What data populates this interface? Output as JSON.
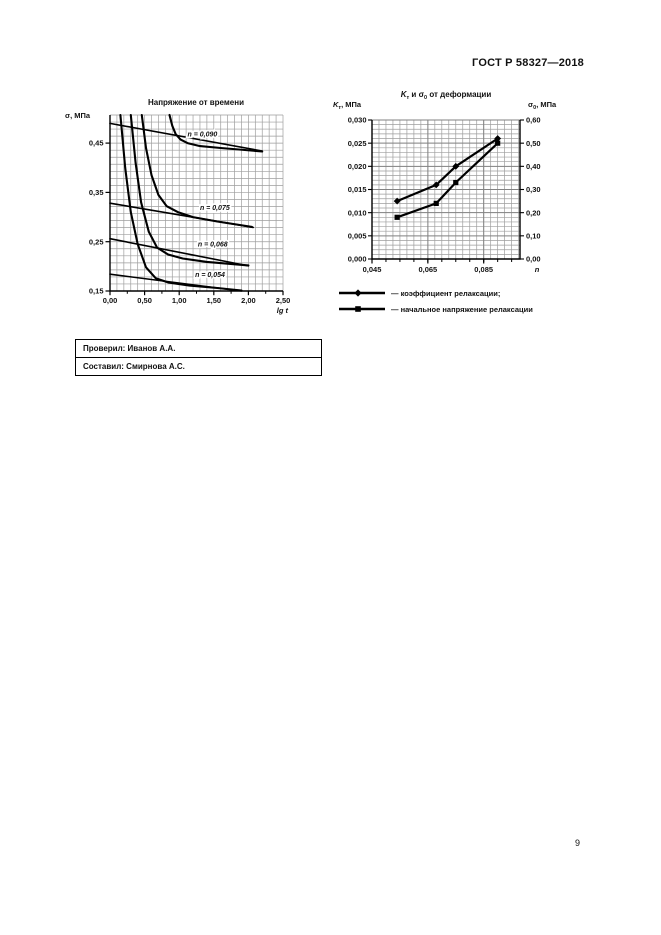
{
  "page": {
    "header_code": "ГОСТ Р 58327—2018",
    "page_number": "9"
  },
  "signature_box": {
    "row1": "Проверил: Иванов А.А.",
    "row2": "Составил: Смирнова А.С."
  },
  "colors": {
    "grid": "#9e9e9e",
    "grid_major": "#828282",
    "axis": "#000000",
    "series": "#000000",
    "text": "#111111"
  },
  "chart_data": [
    {
      "type": "line",
      "title": "Напряжение от времени",
      "ylabel": "σ, МПа",
      "xlabel": "lg t",
      "xlim": [
        0,
        2.5
      ],
      "ylim": [
        0.15,
        0.507
      ],
      "grid": true,
      "x_tick_values": [
        0,
        0.5,
        1.0,
        1.5,
        2.0,
        2.5
      ],
      "x_tick_labels": [
        "0,00",
        "0,50",
        "1,00",
        "1,50",
        "2,00",
        "2,50"
      ],
      "y_tick_values": [
        0.15,
        0.25,
        0.35,
        0.45
      ],
      "y_tick_labels": [
        "0,15",
        "0,25",
        "0,35",
        "0,45"
      ],
      "series": [
        {
          "name": "аппроксимирующая прямая n = 0,090",
          "kind": "line",
          "points": [
            [
              0,
              0.49
            ],
            [
              2.2,
              0.434
            ]
          ]
        },
        {
          "name": "аппроксимирующая прямая n = 0,075",
          "kind": "line",
          "points": [
            [
              0,
              0.328
            ],
            [
              2.07,
              0.279
            ]
          ]
        },
        {
          "name": "аппроксимирующая прямая n = 0,068",
          "kind": "line",
          "points": [
            [
              0,
              0.256
            ],
            [
              2.0,
              0.201
            ]
          ]
        },
        {
          "name": "аппроксимирующая прямая n = 0,054",
          "kind": "line",
          "points": [
            [
              0,
              0.184
            ],
            [
              1.9,
              0.15
            ]
          ]
        },
        {
          "name": "кривая релаксации n = 0,090",
          "kind": "curve",
          "points": [
            [
              0.86,
              0.507
            ],
            [
              0.9,
              0.485
            ],
            [
              0.95,
              0.468
            ],
            [
              1.02,
              0.457
            ],
            [
              1.12,
              0.45
            ],
            [
              1.3,
              0.444
            ],
            [
              1.6,
              0.44
            ],
            [
              1.95,
              0.436
            ],
            [
              2.2,
              0.433
            ]
          ]
        },
        {
          "name": "кривая релаксации n = 0,075",
          "kind": "curve",
          "points": [
            [
              0.46,
              0.507
            ],
            [
              0.52,
              0.44
            ],
            [
              0.6,
              0.385
            ],
            [
              0.7,
              0.345
            ],
            [
              0.82,
              0.322
            ],
            [
              0.98,
              0.31
            ],
            [
              1.2,
              0.3
            ],
            [
              1.55,
              0.291
            ],
            [
              2.05,
              0.28
            ]
          ]
        },
        {
          "name": "кривая релаксации n = 0,068",
          "kind": "curve",
          "points": [
            [
              0.3,
              0.507
            ],
            [
              0.37,
              0.41
            ],
            [
              0.45,
              0.33
            ],
            [
              0.56,
              0.27
            ],
            [
              0.68,
              0.238
            ],
            [
              0.84,
              0.224
            ],
            [
              1.05,
              0.216
            ],
            [
              1.4,
              0.209
            ],
            [
              2.0,
              0.202
            ]
          ]
        },
        {
          "name": "кривая релаксации n = 0,054",
          "kind": "curve",
          "points": [
            [
              0.15,
              0.507
            ],
            [
              0.22,
              0.4
            ],
            [
              0.3,
              0.31
            ],
            [
              0.4,
              0.245
            ],
            [
              0.52,
              0.198
            ],
            [
              0.66,
              0.176
            ],
            [
              0.85,
              0.167
            ],
            [
              1.15,
              0.161
            ],
            [
              1.55,
              0.156
            ],
            [
              1.9,
              0.151
            ]
          ]
        }
      ],
      "point_labels": [
        {
          "text": "n = 0,090",
          "x": 1.12,
          "y": 0.468
        },
        {
          "text": "n = 0,075",
          "x": 1.3,
          "y": 0.319
        },
        {
          "text": "n = 0,068",
          "x": 1.27,
          "y": 0.245
        },
        {
          "text": "n = 0,054",
          "x": 1.23,
          "y": 0.183
        }
      ]
    },
    {
      "type": "line",
      "title": "Kт и σ0 от деформации",
      "title_parts": {
        "k_base": "K",
        "k_sub": "т",
        "mid": " и σ",
        "sigma_sub": "0",
        "rest": " от деформации"
      },
      "ylabel_left": "Kт, МПа",
      "ylabel_left_parts": {
        "base": "K",
        "sub": "т",
        "unit": ", МПа"
      },
      "ylabel_right": "σ0, МПа",
      "ylabel_right_parts": {
        "base": "σ",
        "sub": "0",
        "unit": ", МПа"
      },
      "xlabel": "n",
      "xlim": [
        0.045,
        0.098
      ],
      "ylim_left": [
        0,
        0.03
      ],
      "ylim_right": [
        0,
        0.6
      ],
      "grid": true,
      "x_tick_values": [
        0.045,
        0.065,
        0.085
      ],
      "x_tick_labels": [
        "0,045",
        "0,065",
        "0,085"
      ],
      "y_tick_values_left": [
        0,
        0.005,
        0.01,
        0.015,
        0.02,
        0.025,
        0.03
      ],
      "y_tick_labels_left": [
        "0,000",
        "0,005",
        "0,010",
        "0,015",
        "0,020",
        "0,025",
        "0,030"
      ],
      "y_tick_values_right": [
        0,
        0.1,
        0.2,
        0.3,
        0.4,
        0.5,
        0.6
      ],
      "y_tick_labels_right": [
        "0,00",
        "0,10",
        "0,20",
        "0,30",
        "0,40",
        "0,50",
        "0,60"
      ],
      "series": [
        {
          "name": "коэффициент релаксации",
          "axis": "left",
          "marker": "diamond",
          "points": [
            [
              0.054,
              0.0125
            ],
            [
              0.068,
              0.016
            ],
            [
              0.075,
              0.02
            ],
            [
              0.09,
              0.026
            ]
          ]
        },
        {
          "name": "начальное напряжение релаксации",
          "axis": "right",
          "marker": "square",
          "points": [
            [
              0.054,
              0.18
            ],
            [
              0.068,
              0.24
            ],
            [
              0.075,
              0.33
            ],
            [
              0.09,
              0.5
            ]
          ]
        }
      ],
      "legend": [
        {
          "marker": "diamond",
          "label": "— коэффициент релаксации;"
        },
        {
          "marker": "square",
          "label": "— начальное напряжение релаксации"
        }
      ]
    }
  ]
}
